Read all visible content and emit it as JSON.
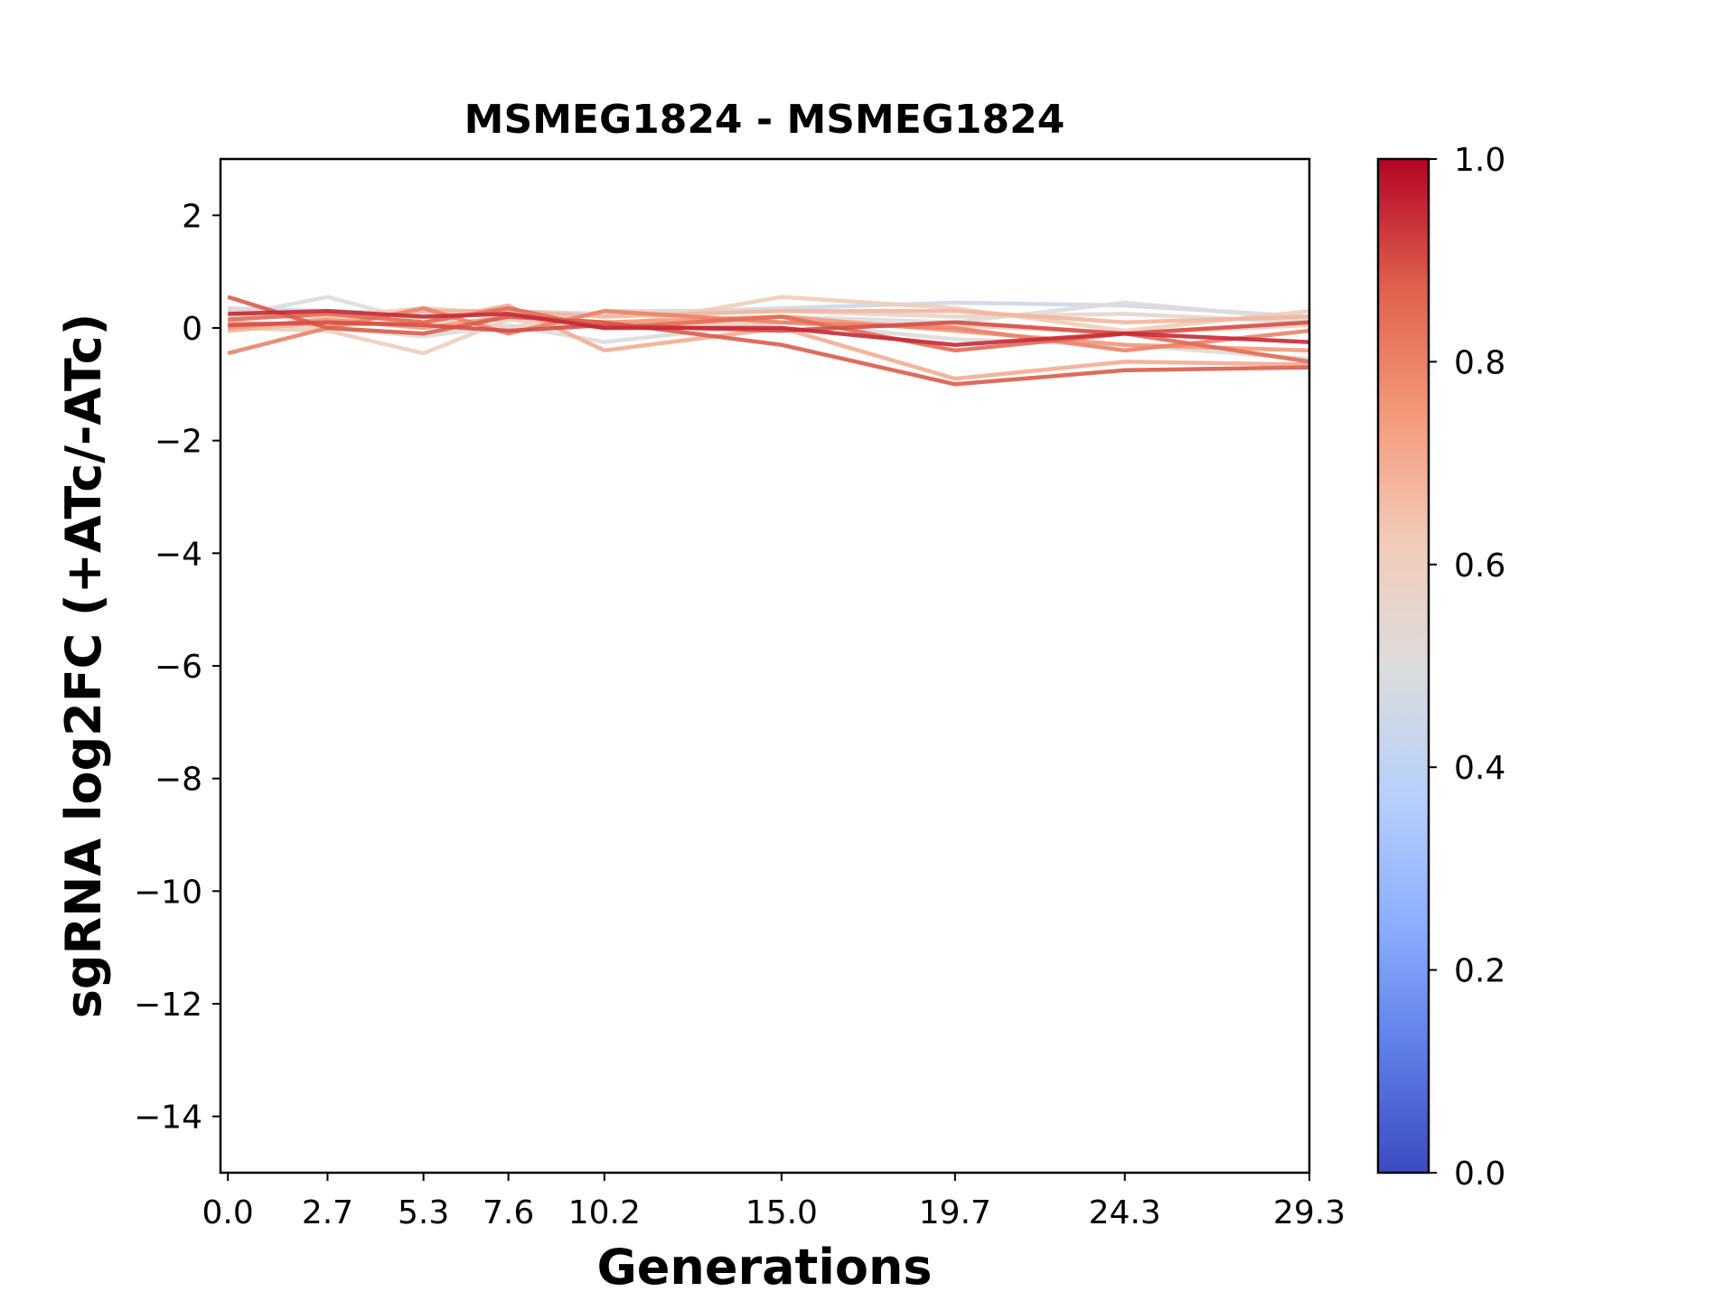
{
  "chart_data": {
    "type": "line",
    "title": "MSMEG1824 - MSMEG1824",
    "xlabel": "Generations",
    "ylabel": "sgRNA log2FC (+ATc/-ATc)",
    "x": [
      0.0,
      2.7,
      5.3,
      7.6,
      10.2,
      15.0,
      19.7,
      24.3,
      29.3
    ],
    "x_tick_labels": [
      "0.0",
      "2.7",
      "5.3",
      "7.6",
      "10.2",
      "15.0",
      "19.7",
      "24.3",
      "29.3"
    ],
    "xlim": [
      -0.2,
      29.3
    ],
    "ylim": [
      -15,
      3
    ],
    "y_ticks": [
      2,
      0,
      -2,
      -4,
      -6,
      -8,
      -10,
      -12,
      -14
    ],
    "y_tick_labels": [
      "2",
      "0",
      "−2",
      "−4",
      "−6",
      "−8",
      "−10",
      "−12",
      "−14"
    ],
    "grid": false,
    "colormap": "coolwarm",
    "colorbar": {
      "range": [
        0.0,
        1.0
      ],
      "ticks": [
        0.0,
        0.2,
        0.4,
        0.6,
        0.8,
        1.0
      ],
      "tick_labels": [
        "0.0",
        "0.2",
        "0.4",
        "0.6",
        "0.8",
        "1.0"
      ]
    },
    "series": [
      {
        "color_value": 0.45,
        "values": [
          0.35,
          0.3,
          0.25,
          0.3,
          0.25,
          0.35,
          0.45,
          0.4,
          0.2
        ]
      },
      {
        "color_value": 0.5,
        "values": [
          0.2,
          0.55,
          0.1,
          0.15,
          0.05,
          0.2,
          0.1,
          0.45,
          0.15
        ]
      },
      {
        "color_value": 0.5,
        "values": [
          0.1,
          0.0,
          -0.15,
          0.05,
          -0.25,
          0.1,
          -0.2,
          -0.3,
          -0.55
        ]
      },
      {
        "color_value": 0.55,
        "values": [
          0.25,
          0.15,
          0.2,
          0.0,
          0.3,
          0.3,
          0.2,
          0.25,
          0.1
        ]
      },
      {
        "color_value": 0.6,
        "values": [
          0.0,
          -0.05,
          -0.45,
          0.15,
          0.0,
          0.1,
          0.05,
          -0.1,
          0.05
        ]
      },
      {
        "color_value": 0.62,
        "values": [
          0.3,
          0.2,
          0.35,
          0.25,
          0.0,
          0.55,
          0.35,
          -0.05,
          0.3
        ]
      },
      {
        "color_value": 0.68,
        "values": [
          -0.05,
          0.1,
          0.3,
          0.3,
          0.2,
          0.3,
          0.3,
          0.1,
          0.2
        ]
      },
      {
        "color_value": 0.7,
        "values": [
          0.1,
          0.05,
          0.1,
          0.4,
          -0.4,
          0.0,
          -0.9,
          -0.6,
          -0.65
        ]
      },
      {
        "color_value": 0.75,
        "values": [
          0.0,
          0.15,
          0.0,
          0.2,
          0.1,
          0.2,
          -0.05,
          -0.3,
          -0.4
        ]
      },
      {
        "color_value": 0.8,
        "values": [
          -0.45,
          0.0,
          0.35,
          -0.1,
          0.3,
          0.1,
          0.0,
          -0.4,
          -0.05
        ]
      },
      {
        "color_value": 0.85,
        "values": [
          0.15,
          0.25,
          0.1,
          0.35,
          0.0,
          0.2,
          -0.4,
          -0.1,
          -0.6
        ]
      },
      {
        "color_value": 0.88,
        "values": [
          0.55,
          0.0,
          -0.1,
          0.2,
          0.1,
          -0.3,
          -1.0,
          -0.75,
          -0.7
        ]
      },
      {
        "color_value": 0.9,
        "values": [
          0.05,
          0.1,
          0.05,
          -0.05,
          0.05,
          -0.05,
          0.1,
          -0.1,
          0.1
        ]
      },
      {
        "color_value": 0.95,
        "values": [
          0.25,
          0.3,
          0.2,
          0.25,
          0.0,
          0.0,
          -0.3,
          -0.1,
          -0.25
        ]
      }
    ]
  }
}
